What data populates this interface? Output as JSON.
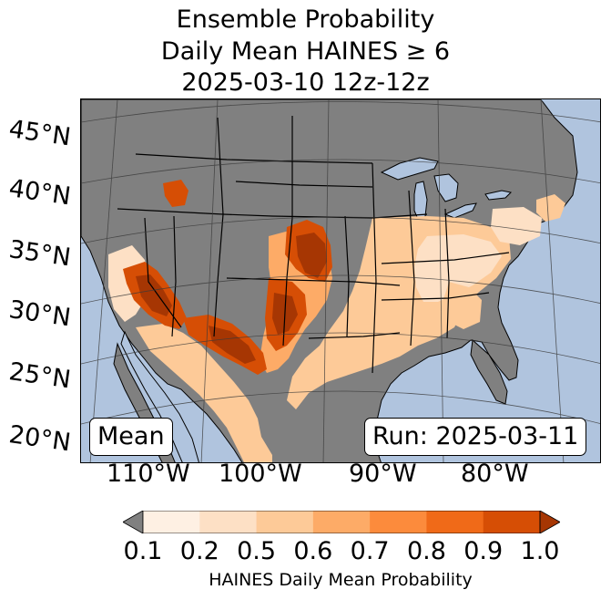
{
  "title": {
    "line1": "Ensemble Probability",
    "line2": "Daily Mean HAINES ≥ 6",
    "line3": "2025-03-10 12z-12z"
  },
  "lat_labels": [
    "45°N",
    "40°N",
    "35°N",
    "30°N",
    "25°N",
    "20°N"
  ],
  "lon_labels": [
    "110°W",
    "100°W",
    "90°W",
    "80°W"
  ],
  "boxes": {
    "left": "Mean",
    "right": "Run: 2025-03-11"
  },
  "colorbar": {
    "ticks": [
      "0.1",
      "0.2",
      "0.5",
      "0.6",
      "0.7",
      "0.8",
      "0.9",
      "1.0"
    ],
    "label": "HAINES Daily Mean Probability",
    "colors": [
      "#fef0e3",
      "#fde0c5",
      "#fdca98",
      "#fdab67",
      "#fc8b3c",
      "#f06a18",
      "#d64e05"
    ],
    "under_color": "#808080",
    "over_color": "#a63603"
  },
  "colors": {
    "ocean": "#b0c4de",
    "land": "#808080",
    "border": "#000000",
    "grid": "#3a3a3a"
  }
}
